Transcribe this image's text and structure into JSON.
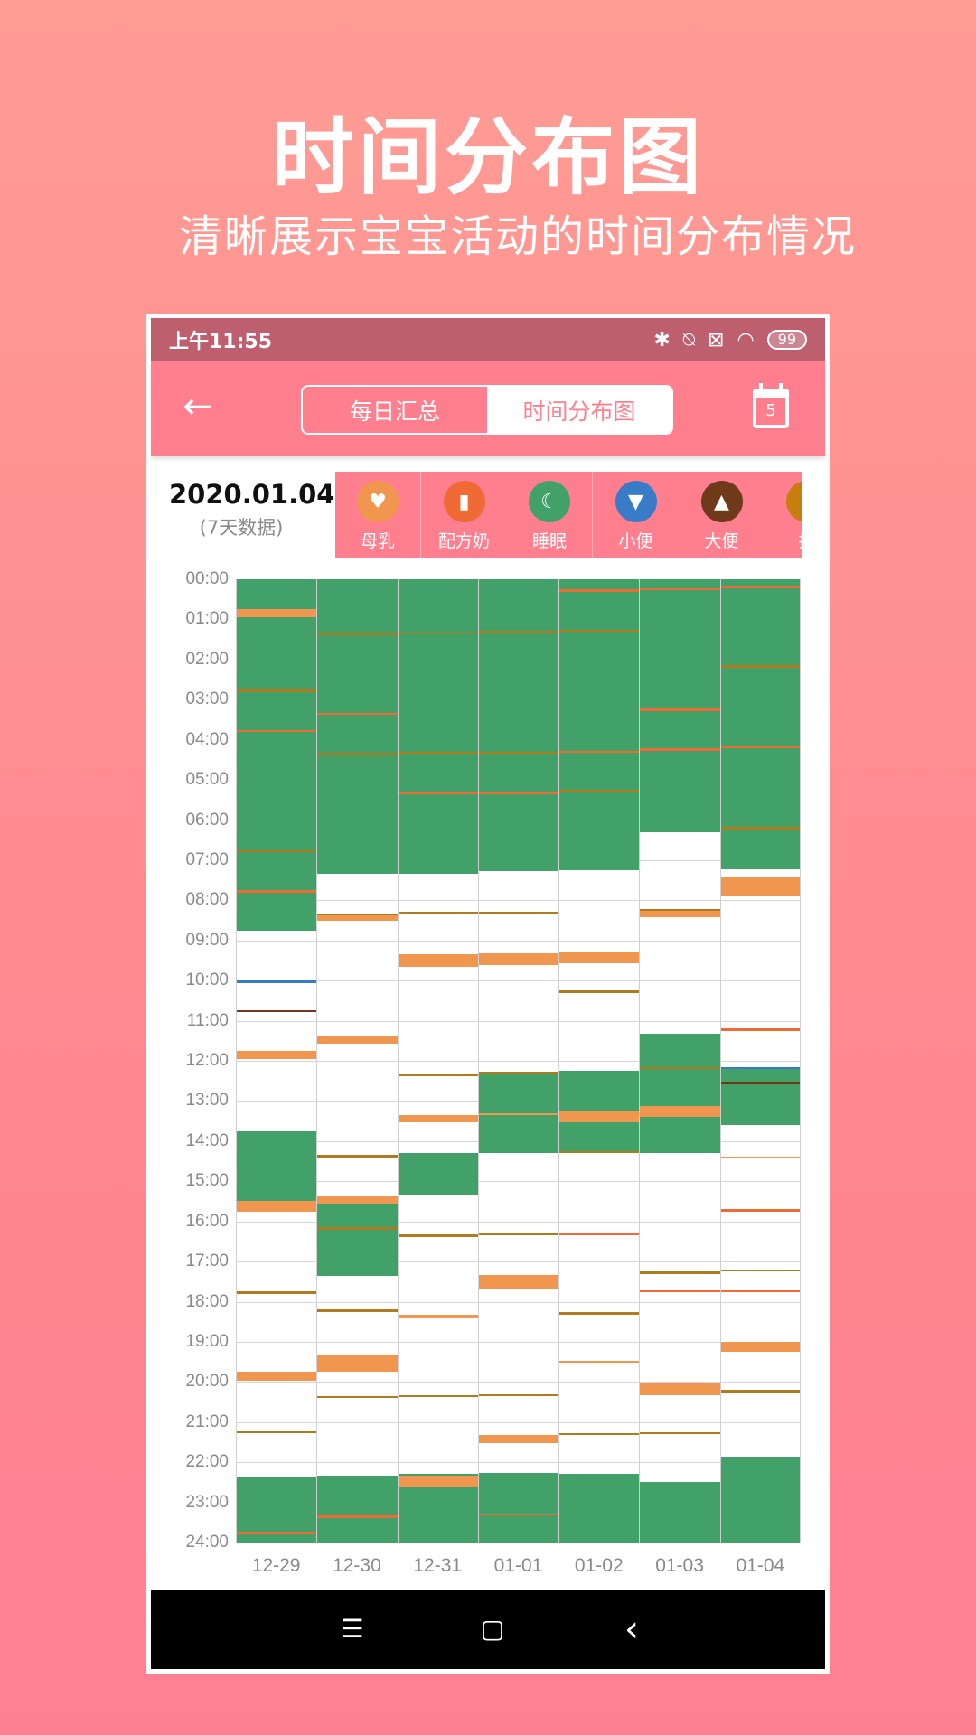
{
  "promo": {
    "title": "时间分布图",
    "subtitle": "清晰展示宝宝活动的时间分布情况"
  },
  "status_bar": {
    "time": "上午11:55",
    "icons": [
      "bluetooth-icon",
      "bell-off-icon",
      "sim-x-icon",
      "wifi-icon"
    ],
    "battery": "99"
  },
  "app_bar": {
    "back_icon": "arrow-left-icon",
    "tabs": [
      {
        "label": "每日汇总",
        "active": false
      },
      {
        "label": "时间分布图",
        "active": true
      }
    ],
    "calendar_day": "5"
  },
  "summary": {
    "date": "2020.01.04",
    "range_note": "(7天数据)"
  },
  "legend": [
    {
      "label": "母乳",
      "icon": "breastfeeding-icon",
      "color": "#f0964f",
      "glyph": "♥"
    },
    {
      "label": "配方奶",
      "icon": "bottle-icon",
      "color": "#ef6a35",
      "glyph": "▮"
    },
    {
      "label": "睡眠",
      "icon": "moon-icon",
      "color": "#42a169",
      "glyph": "☾"
    },
    {
      "label": "小便",
      "icon": "diaper-icon",
      "color": "#3a7bc8",
      "glyph": "▼"
    },
    {
      "label": "大便",
      "icon": "poop-icon",
      "color": "#6e3a1a",
      "glyph": "▲"
    },
    {
      "label": "换",
      "icon": "change-icon",
      "color": "#c87d10",
      "glyph": ""
    }
  ],
  "colors": {
    "sleep": "#42a169",
    "breast": "#f0964f",
    "formula": "#ef6a35",
    "pee": "#3a7bc8",
    "poop": "#6e3a1a",
    "change": "#b07a1e"
  },
  "chart_data": {
    "type": "heatmap",
    "title": "时间分布图",
    "xlabel": "",
    "ylabel": "",
    "y_ticks": [
      "00:00",
      "01:00",
      "02:00",
      "03:00",
      "04:00",
      "05:00",
      "06:00",
      "07:00",
      "08:00",
      "09:00",
      "10:00",
      "11:00",
      "12:00",
      "13:00",
      "14:00",
      "15:00",
      "16:00",
      "17:00",
      "18:00",
      "19:00",
      "20:00",
      "21:00",
      "22:00",
      "23:00",
      "24:00"
    ],
    "ylim": [
      0,
      24
    ],
    "categories": [
      "12-29",
      "12-30",
      "12-31",
      "01-01",
      "01-02",
      "01-03",
      "01-04"
    ],
    "series": [
      {
        "day": "12-29",
        "blocks": [
          {
            "type": "sleep",
            "start": 0,
            "end": 8.75
          },
          {
            "type": "breast",
            "start": 0.75,
            "end": 0.95
          },
          {
            "type": "change",
            "start": 2.75,
            "end": 2.8
          },
          {
            "type": "formula",
            "start": 3.75,
            "end": 3.8
          },
          {
            "type": "change",
            "start": 6.75,
            "end": 6.8
          },
          {
            "type": "formula",
            "start": 7.75,
            "end": 7.8
          },
          {
            "type": "pee",
            "start": 10,
            "end": 10.04
          },
          {
            "type": "poop",
            "start": 10.73,
            "end": 10.78
          },
          {
            "type": "breast",
            "start": 11.75,
            "end": 11.95
          },
          {
            "type": "sleep",
            "start": 13.75,
            "end": 15.5
          },
          {
            "type": "breast",
            "start": 15.5,
            "end": 15.75
          },
          {
            "type": "change",
            "start": 17.75,
            "end": 17.8
          },
          {
            "type": "breast",
            "start": 19.75,
            "end": 19.97
          },
          {
            "type": "change",
            "start": 21.22,
            "end": 21.27
          },
          {
            "type": "sleep",
            "start": 22.35,
            "end": 24
          },
          {
            "type": "formula",
            "start": 23.72,
            "end": 23.8
          }
        ]
      },
      {
        "day": "12-30",
        "blocks": [
          {
            "type": "sleep",
            "start": 0,
            "end": 7.33
          },
          {
            "type": "change",
            "start": 1.33,
            "end": 1.38
          },
          {
            "type": "formula",
            "start": 3.33,
            "end": 3.38
          },
          {
            "type": "change",
            "start": 4.33,
            "end": 4.38
          },
          {
            "type": "change",
            "start": 8.33,
            "end": 8.38
          },
          {
            "type": "breast",
            "start": 8.38,
            "end": 8.5
          },
          {
            "type": "breast",
            "start": 11.4,
            "end": 11.58
          },
          {
            "type": "change",
            "start": 14.35,
            "end": 14.4
          },
          {
            "type": "breast",
            "start": 15.35,
            "end": 15.55
          },
          {
            "type": "sleep",
            "start": 15.55,
            "end": 17.35
          },
          {
            "type": "change",
            "start": 16.15,
            "end": 16.22
          },
          {
            "type": "change",
            "start": 18.2,
            "end": 18.25
          },
          {
            "type": "breast",
            "start": 19.35,
            "end": 19.75
          },
          {
            "type": "change",
            "start": 20.35,
            "end": 20.4
          },
          {
            "type": "sleep",
            "start": 22.33,
            "end": 24
          },
          {
            "type": "formula",
            "start": 23.33,
            "end": 23.38
          }
        ]
      },
      {
        "day": "12-31",
        "blocks": [
          {
            "type": "sleep",
            "start": 0,
            "end": 7.33
          },
          {
            "type": "change",
            "start": 1.3,
            "end": 1.35
          },
          {
            "type": "change",
            "start": 4.3,
            "end": 4.35
          },
          {
            "type": "formula",
            "start": 5.3,
            "end": 5.35
          },
          {
            "type": "change",
            "start": 8.28,
            "end": 8.33
          },
          {
            "type": "breast",
            "start": 9.35,
            "end": 9.65
          },
          {
            "type": "change",
            "start": 12.33,
            "end": 12.38
          },
          {
            "type": "breast",
            "start": 13.35,
            "end": 13.52
          },
          {
            "type": "sleep",
            "start": 14.3,
            "end": 15.33
          },
          {
            "type": "change",
            "start": 16.33,
            "end": 16.38
          },
          {
            "type": "breast",
            "start": 18.33,
            "end": 18.37
          },
          {
            "type": "change",
            "start": 20.33,
            "end": 20.38
          },
          {
            "type": "sleep",
            "start": 22.3,
            "end": 24
          },
          {
            "type": "breast",
            "start": 22.33,
            "end": 22.63
          }
        ]
      },
      {
        "day": "01-01",
        "blocks": [
          {
            "type": "sleep",
            "start": 0,
            "end": 7.28
          },
          {
            "type": "change",
            "start": 1.28,
            "end": 1.33
          },
          {
            "type": "change",
            "start": 4.3,
            "end": 4.35
          },
          {
            "type": "formula",
            "start": 5.3,
            "end": 5.35
          },
          {
            "type": "change",
            "start": 8.28,
            "end": 8.33
          },
          {
            "type": "breast",
            "start": 9.33,
            "end": 9.62
          },
          {
            "type": "sleep",
            "start": 12.28,
            "end": 14.3
          },
          {
            "type": "change",
            "start": 12.28,
            "end": 12.33
          },
          {
            "type": "breast",
            "start": 13.3,
            "end": 13.35
          },
          {
            "type": "change",
            "start": 16.3,
            "end": 16.35
          },
          {
            "type": "breast",
            "start": 17.33,
            "end": 17.68
          },
          {
            "type": "change",
            "start": 20.3,
            "end": 20.35
          },
          {
            "type": "breast",
            "start": 21.33,
            "end": 21.53
          },
          {
            "type": "sleep",
            "start": 22.27,
            "end": 24
          },
          {
            "type": "formula",
            "start": 23.27,
            "end": 23.33
          }
        ]
      },
      {
        "day": "01-02",
        "blocks": [
          {
            "type": "sleep",
            "start": 0,
            "end": 7.25
          },
          {
            "type": "formula",
            "start": 0.25,
            "end": 0.3
          },
          {
            "type": "change",
            "start": 1.25,
            "end": 1.3
          },
          {
            "type": "formula",
            "start": 4.27,
            "end": 4.32
          },
          {
            "type": "change",
            "start": 5.25,
            "end": 5.3
          },
          {
            "type": "breast",
            "start": 9.3,
            "end": 9.58
          },
          {
            "type": "change",
            "start": 10.25,
            "end": 10.3
          },
          {
            "type": "sleep",
            "start": 12.25,
            "end": 14.3
          },
          {
            "type": "breast",
            "start": 13.27,
            "end": 13.53
          },
          {
            "type": "change",
            "start": 14.25,
            "end": 14.3
          },
          {
            "type": "formula",
            "start": 16.28,
            "end": 16.32
          },
          {
            "type": "change",
            "start": 18.27,
            "end": 18.32
          },
          {
            "type": "breast",
            "start": 19.47,
            "end": 19.51
          },
          {
            "type": "change",
            "start": 21.27,
            "end": 21.32
          },
          {
            "type": "sleep",
            "start": 22.3,
            "end": 24
          }
        ]
      },
      {
        "day": "01-03",
        "blocks": [
          {
            "type": "sleep",
            "start": 0,
            "end": 6.3
          },
          {
            "type": "formula",
            "start": 0.22,
            "end": 0.27
          },
          {
            "type": "formula",
            "start": 3.22,
            "end": 3.27
          },
          {
            "type": "formula",
            "start": 4.22,
            "end": 4.27
          },
          {
            "type": "change",
            "start": 8.22,
            "end": 8.27
          },
          {
            "type": "breast",
            "start": 8.27,
            "end": 8.43
          },
          {
            "type": "sleep",
            "start": 11.33,
            "end": 14.3
          },
          {
            "type": "change",
            "start": 12.15,
            "end": 12.2
          },
          {
            "type": "breast",
            "start": 13.13,
            "end": 13.4
          },
          {
            "type": "change",
            "start": 17.25,
            "end": 17.3
          },
          {
            "type": "formula",
            "start": 17.7,
            "end": 17.75
          },
          {
            "type": "breast",
            "start": 20.03,
            "end": 20.33
          },
          {
            "type": "change",
            "start": 21.25,
            "end": 21.3
          },
          {
            "type": "sleep",
            "start": 22.5,
            "end": 24
          }
        ]
      },
      {
        "day": "01-04",
        "blocks": [
          {
            "type": "sleep",
            "start": 0,
            "end": 7.22
          },
          {
            "type": "formula",
            "start": 0.17,
            "end": 0.22
          },
          {
            "type": "change",
            "start": 2.15,
            "end": 2.2
          },
          {
            "type": "formula",
            "start": 4.15,
            "end": 4.2
          },
          {
            "type": "change",
            "start": 6.17,
            "end": 6.22
          },
          {
            "type": "breast",
            "start": 7.4,
            "end": 7.9
          },
          {
            "type": "formula",
            "start": 11.2,
            "end": 11.25
          },
          {
            "type": "pee",
            "start": 12.15,
            "end": 12.2
          },
          {
            "type": "sleep",
            "start": 12.2,
            "end": 13.6
          },
          {
            "type": "poop",
            "start": 12.52,
            "end": 12.57
          },
          {
            "type": "breast",
            "start": 14.38,
            "end": 14.42
          },
          {
            "type": "formula",
            "start": 15.7,
            "end": 15.75
          },
          {
            "type": "change",
            "start": 17.2,
            "end": 17.25
          },
          {
            "type": "formula",
            "start": 17.7,
            "end": 17.75
          },
          {
            "type": "breast",
            "start": 19.0,
            "end": 19.25
          },
          {
            "type": "change",
            "start": 20.2,
            "end": 20.25
          },
          {
            "type": "sleep",
            "start": 21.85,
            "end": 24
          }
        ]
      }
    ]
  },
  "nav_bar": {
    "buttons": [
      "menu-icon",
      "home-icon",
      "back-icon"
    ],
    "glyphs": [
      "☰",
      "▢",
      "‹"
    ]
  }
}
